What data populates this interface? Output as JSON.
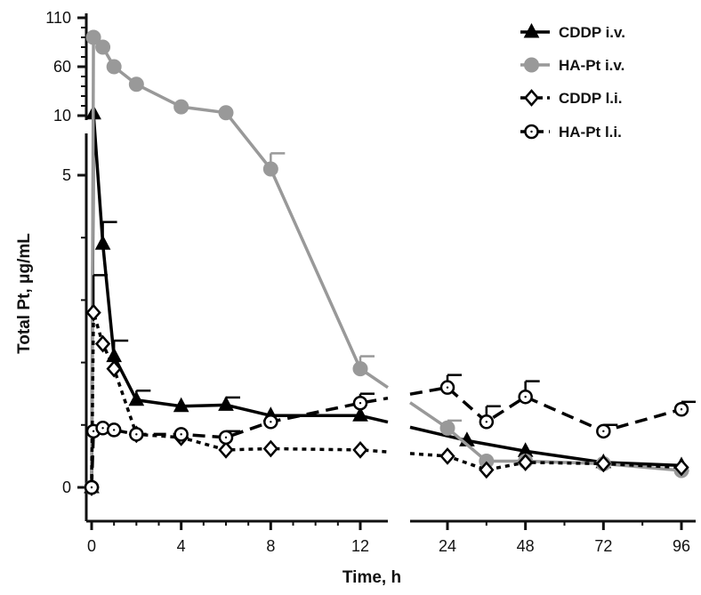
{
  "chart_data": {
    "type": "line",
    "xlabel": "Time, h",
    "ylabel": "Total Pt, μg/mL",
    "x_ticks": [
      "0",
      "4",
      "8",
      "12",
      "24",
      "48",
      "72",
      "96"
    ],
    "y_ticks_upper": [
      "110",
      "60",
      "10"
    ],
    "y_ticks_lower": [
      "5",
      "0"
    ],
    "x_axis_break_between_hours": [
      12,
      24
    ],
    "y_axis_segments": [
      {
        "range": [
          0,
          5.5
        ]
      },
      {
        "range": [
          10,
          110
        ]
      }
    ],
    "series": [
      {
        "name": "CDDP i.v.",
        "marker": "filled-triangle",
        "line": "solid",
        "color": "#000000",
        "points": [
          {
            "x": 0,
            "y": 0
          },
          {
            "x": 0.083,
            "y": 12
          },
          {
            "x": 0.5,
            "y": 3.9,
            "err": 0.35
          },
          {
            "x": 1,
            "y": 2.1,
            "err": 0.25
          },
          {
            "x": 2,
            "y": 1.4,
            "err": 0.15
          },
          {
            "x": 4,
            "y": 1.3
          },
          {
            "x": 6,
            "y": 1.32,
            "err": 0.12
          },
          {
            "x": 8,
            "y": 1.15
          },
          {
            "x": 12,
            "y": 1.15
          },
          {
            "x": 30,
            "y": 0.75
          },
          {
            "x": 48,
            "y": 0.58
          },
          {
            "x": 72,
            "y": 0.4
          },
          {
            "x": 96,
            "y": 0.35
          }
        ]
      },
      {
        "name": "HA-Pt i.v.",
        "marker": "filled-circle",
        "line": "solid",
        "color": "#999999",
        "points": [
          {
            "x": 0,
            "y": 0
          },
          {
            "x": 0.083,
            "y": 90
          },
          {
            "x": 0.5,
            "y": 80
          },
          {
            "x": 1,
            "y": 60
          },
          {
            "x": 2,
            "y": 42
          },
          {
            "x": 4,
            "y": 19
          },
          {
            "x": 6,
            "y": 13
          },
          {
            "x": 8,
            "y": 5.1,
            "err": 0.25
          },
          {
            "x": 12,
            "y": 1.9,
            "err": 0.2
          },
          {
            "x": 24,
            "y": 0.95,
            "err": 0.12
          },
          {
            "x": 36,
            "y": 0.42
          },
          {
            "x": 48,
            "y": 0.42
          },
          {
            "x": 72,
            "y": 0.38
          },
          {
            "x": 96,
            "y": 0.27
          }
        ]
      },
      {
        "name": "CDDP l.i.",
        "marker": "open-diamond",
        "line": "dotted",
        "color": "#000000",
        "points": [
          {
            "x": 0,
            "y": 0
          },
          {
            "x": 0.083,
            "y": 2.8,
            "err": 0.6
          },
          {
            "x": 0.5,
            "y": 2.3
          },
          {
            "x": 1,
            "y": 1.9
          },
          {
            "x": 2,
            "y": 0.85
          },
          {
            "x": 4,
            "y": 0.8
          },
          {
            "x": 6,
            "y": 0.6
          },
          {
            "x": 8,
            "y": 0.62
          },
          {
            "x": 12,
            "y": 0.6
          },
          {
            "x": 24,
            "y": 0.5
          },
          {
            "x": 36,
            "y": 0.28
          },
          {
            "x": 48,
            "y": 0.4
          },
          {
            "x": 72,
            "y": 0.38
          },
          {
            "x": 96,
            "y": 0.32
          }
        ]
      },
      {
        "name": "HA-Pt l.i.",
        "marker": "open-circle",
        "line": "dashed",
        "color": "#000000",
        "points": [
          {
            "x": 0,
            "y": 0
          },
          {
            "x": 0.083,
            "y": 0.9
          },
          {
            "x": 0.5,
            "y": 0.95
          },
          {
            "x": 1,
            "y": 0.92
          },
          {
            "x": 2,
            "y": 0.85
          },
          {
            "x": 4,
            "y": 0.85
          },
          {
            "x": 6,
            "y": 0.8,
            "err": 0.1
          },
          {
            "x": 8,
            "y": 1.05
          },
          {
            "x": 12,
            "y": 1.35,
            "err": 0.15
          },
          {
            "x": 24,
            "y": 1.6,
            "err": 0.2
          },
          {
            "x": 36,
            "y": 1.05,
            "err": 0.25
          },
          {
            "x": 48,
            "y": 1.45,
            "err": 0.25
          },
          {
            "x": 72,
            "y": 0.9,
            "err": 0.1
          },
          {
            "x": 96,
            "y": 1.25,
            "err": 0.12
          }
        ]
      }
    ],
    "legend": {
      "placement": "top-right"
    }
  }
}
